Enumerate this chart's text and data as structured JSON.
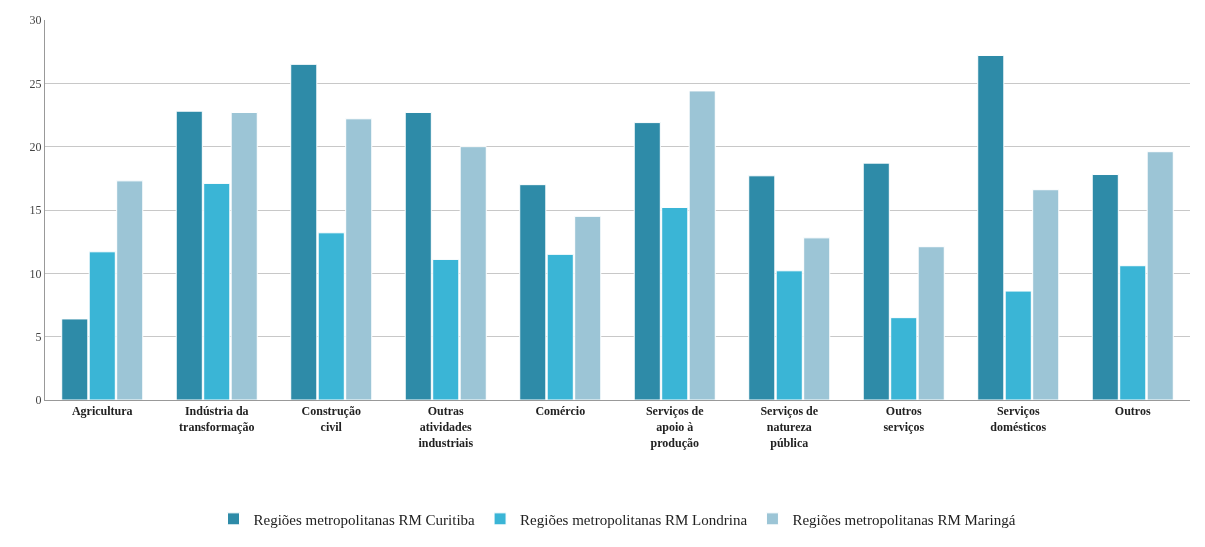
{
  "chart_data": {
    "type": "bar",
    "categories": [
      "Agricultura",
      "Indústria da transformação",
      "Construção civil",
      "Outras atividades industriais",
      "Comércio",
      "Serviços de apoio à produção",
      "Serviços de natureza pública",
      "Outros serviços",
      "Serviços domésticos",
      "Outros"
    ],
    "series": [
      {
        "name": "Regiões metropolitanas RM Curitiba",
        "color": "#2e8ba8",
        "values": [
          6.4,
          22.8,
          26.5,
          22.7,
          17.0,
          21.9,
          17.7,
          18.7,
          27.2,
          17.8
        ]
      },
      {
        "name": "Regiões metropolitanas RM Londrina",
        "color": "#3ab5d6",
        "values": [
          11.7,
          17.1,
          13.2,
          11.1,
          11.5,
          15.2,
          10.2,
          6.5,
          8.6,
          10.6
        ]
      },
      {
        "name": "Regiões metropolitanas RM Maringá",
        "color": "#9cc5d6",
        "values": [
          17.3,
          22.7,
          22.2,
          20.0,
          14.5,
          24.4,
          12.8,
          12.1,
          16.6,
          19.6
        ]
      }
    ],
    "ylim": [
      0,
      30
    ],
    "yticks": [
      0,
      5,
      10,
      15,
      20,
      25,
      30
    ],
    "grid": "y",
    "legend": "bottom"
  }
}
